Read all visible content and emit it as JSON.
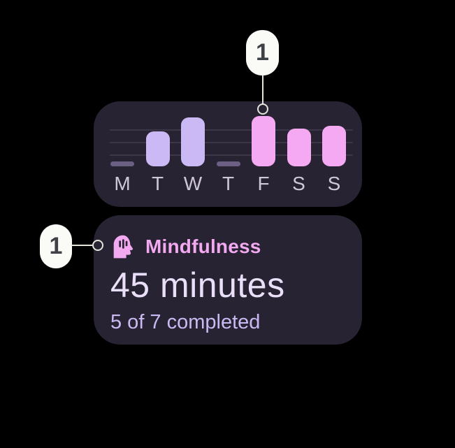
{
  "colors": {
    "background": "#000000",
    "card": "#282333",
    "bar_lavender": "#CBB9F6",
    "bar_pink": "#F5A9F2",
    "bar_dash": "#6B6083",
    "gridline": "#3B3648",
    "day_label": "#CEC7D8",
    "accent_pink": "#F2A9F0",
    "value_text": "#E9DFF8",
    "subtitle_text": "#CBB9F3",
    "callout_bg": "#FAFAF7",
    "callout_text": "#3E4247",
    "connector": "#E4E6DB"
  },
  "chart_data": {
    "type": "bar",
    "categories": [
      "M",
      "T",
      "W",
      "T",
      "F",
      "S",
      "S"
    ],
    "values": [
      0,
      50,
      70,
      0,
      72,
      54,
      58
    ],
    "value_note": "relative bar heights in px as rendered; 0 = flat dash pill (day not completed)",
    "bar_styles": [
      "dash",
      "lavender",
      "lavender",
      "dash",
      "pink",
      "pink",
      "pink"
    ],
    "gridline_count": 3,
    "legend": "none",
    "highlighted_category_index": 4
  },
  "summary": {
    "icon": "mindfulness-icon",
    "title": "Mindfulness",
    "value": "45 minutes",
    "subtitle": "5 of 7 completed"
  },
  "callouts": [
    {
      "label": "1",
      "target": "friday-bar"
    },
    {
      "label": "1",
      "target": "mindfulness-icon"
    }
  ]
}
